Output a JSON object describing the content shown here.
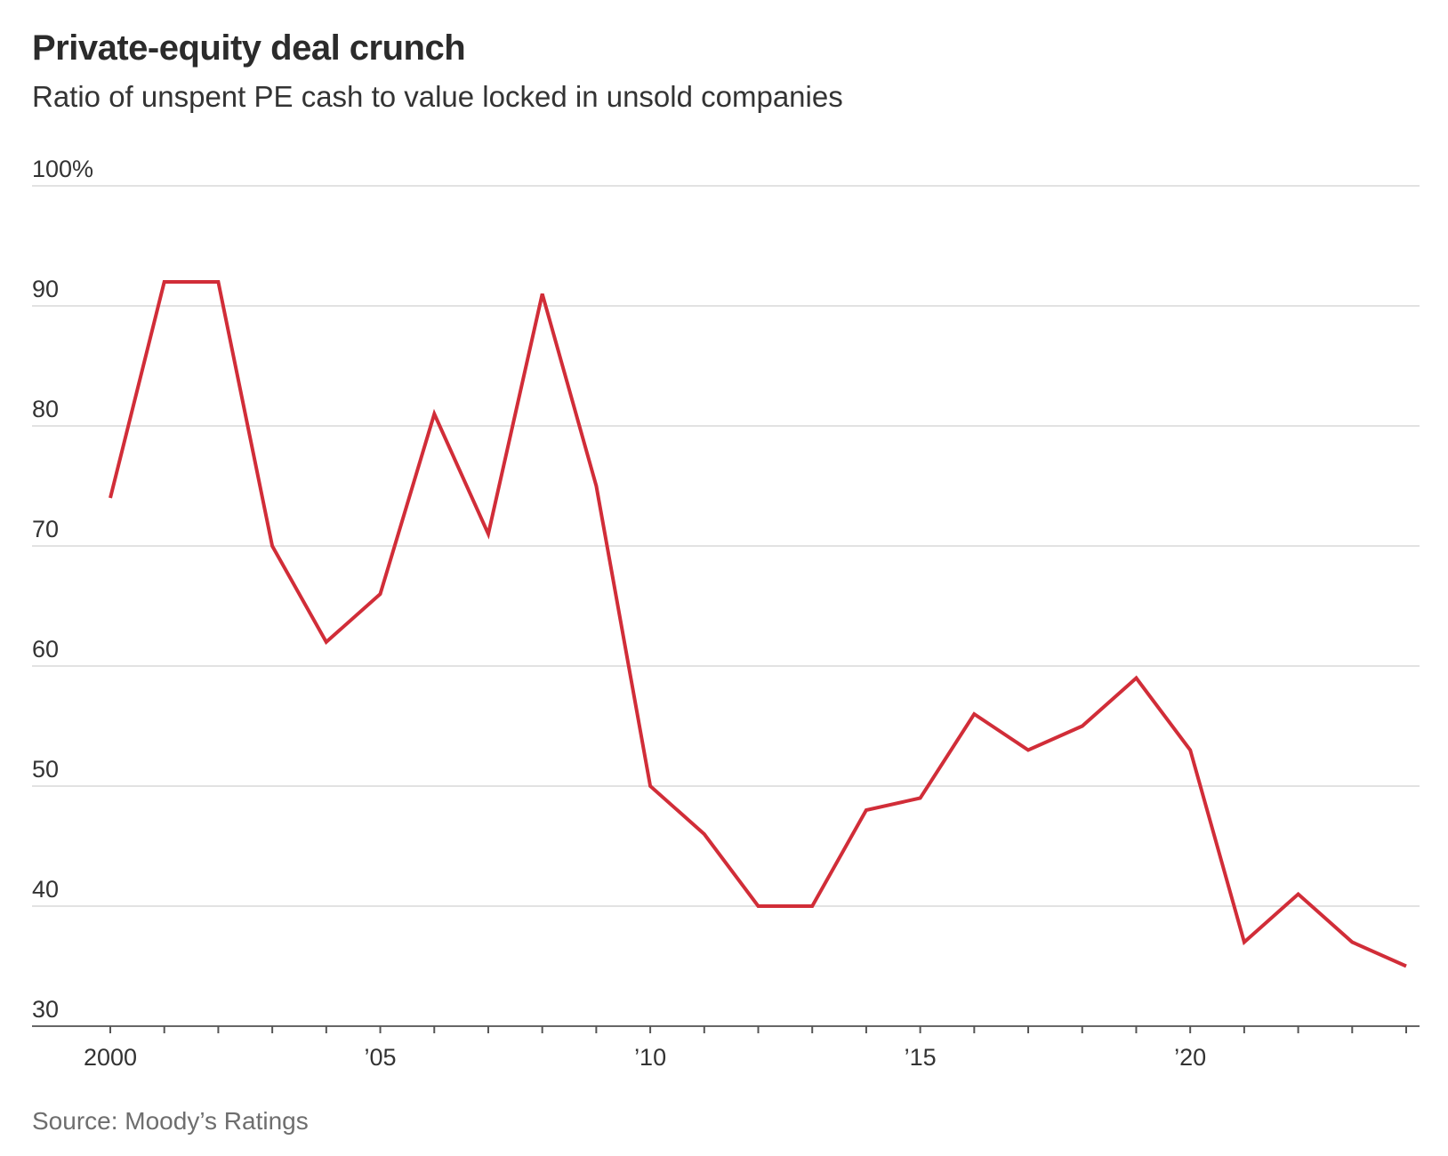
{
  "header": {
    "title": "Private-equity deal crunch",
    "subtitle": "Ratio of unspent PE cash to value locked in unsold companies"
  },
  "footer": {
    "source": "Source: Moody’s Ratings"
  },
  "chart_data": {
    "type": "line",
    "title": "Private-equity deal crunch",
    "subtitle": "Ratio of unspent PE cash to value locked in unsold companies",
    "xlabel": "",
    "ylabel": "",
    "x": [
      2000,
      2001,
      2002,
      2003,
      2004,
      2005,
      2006,
      2007,
      2008,
      2009,
      2010,
      2011,
      2012,
      2013,
      2014,
      2015,
      2016,
      2017,
      2018,
      2019,
      2020,
      2021,
      2022,
      2023,
      2024
    ],
    "series": [
      {
        "name": "Ratio of unspent PE cash to value locked in unsold companies",
        "color": "#d12d38",
        "values": [
          74,
          92,
          92,
          70,
          62,
          66,
          81,
          71,
          91,
          75,
          50,
          46,
          40,
          40,
          48,
          49,
          56,
          53,
          55,
          59,
          53,
          37,
          41,
          37,
          35
        ]
      }
    ],
    "xlim": [
      2000,
      2024
    ],
    "ylim": [
      30,
      100
    ],
    "y_ticks": [
      30,
      40,
      50,
      60,
      70,
      80,
      90,
      100
    ],
    "y_tick_labels": [
      "30",
      "40",
      "50",
      "60",
      "70",
      "80",
      "90",
      "100%"
    ],
    "x_ticks": [
      2000,
      2005,
      2010,
      2015,
      2020
    ],
    "x_tick_labels": [
      "2000",
      "’05",
      "’10",
      "’15",
      "’20"
    ],
    "grid": true,
    "legend": "none"
  }
}
